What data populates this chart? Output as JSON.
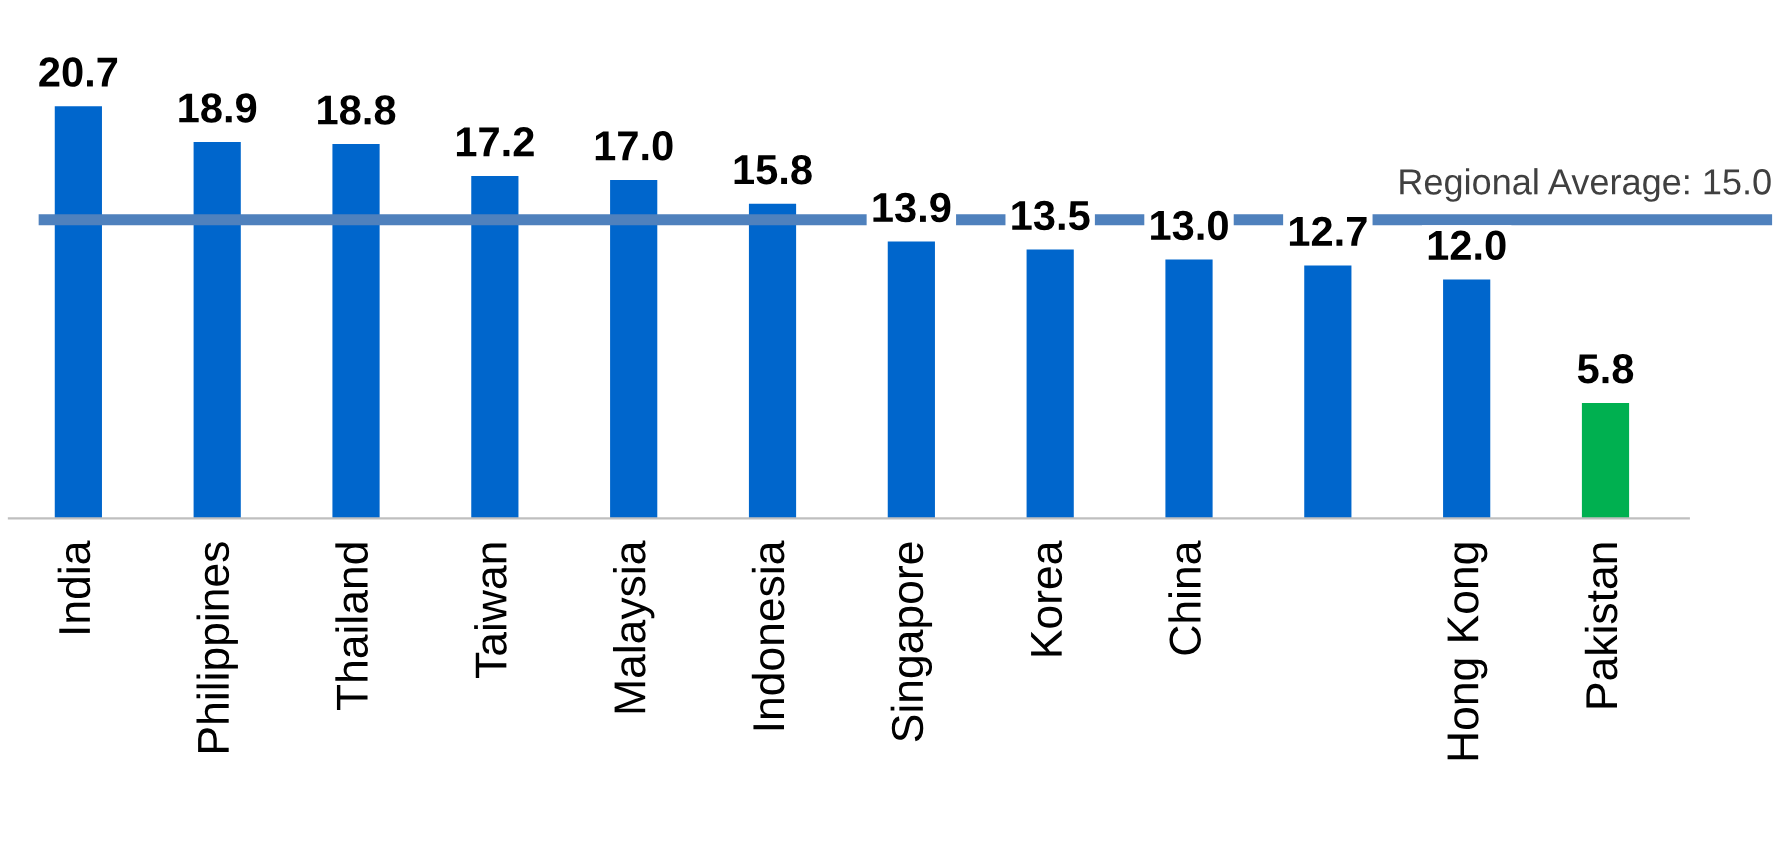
{
  "chart_data": {
    "type": "bar",
    "categories": [
      "India",
      "Philippines",
      "Thailand",
      "Taiwan",
      "Malaysia",
      "Indonesia",
      "Singapore",
      "Korea",
      "China",
      null,
      "Hong Kong",
      "Pakistan"
    ],
    "values": [
      20.7,
      18.9,
      18.8,
      17.2,
      17.0,
      15.8,
      13.9,
      13.5,
      13.0,
      12.7,
      12.0,
      5.8
    ],
    "colors": [
      "#0066cc",
      "#0066cc",
      "#0066cc",
      "#0066cc",
      "#0066cc",
      "#0066cc",
      "#0066cc",
      "#0066cc",
      "#0066cc",
      "#0066cc",
      "#0066cc",
      "#00b050"
    ],
    "value_labels": [
      "20.7",
      "18.9",
      "18.8",
      "17.2",
      "17.0",
      "15.8",
      "13.9",
      "13.5",
      "13.0",
      "12.7",
      "12.0",
      "5.8"
    ],
    "grid": false,
    "legend": false,
    "ref_lines": [
      {
        "axis": "y",
        "value": 15.0,
        "label": "Regional Average: 15.0",
        "color": "#4f81bd"
      }
    ]
  }
}
